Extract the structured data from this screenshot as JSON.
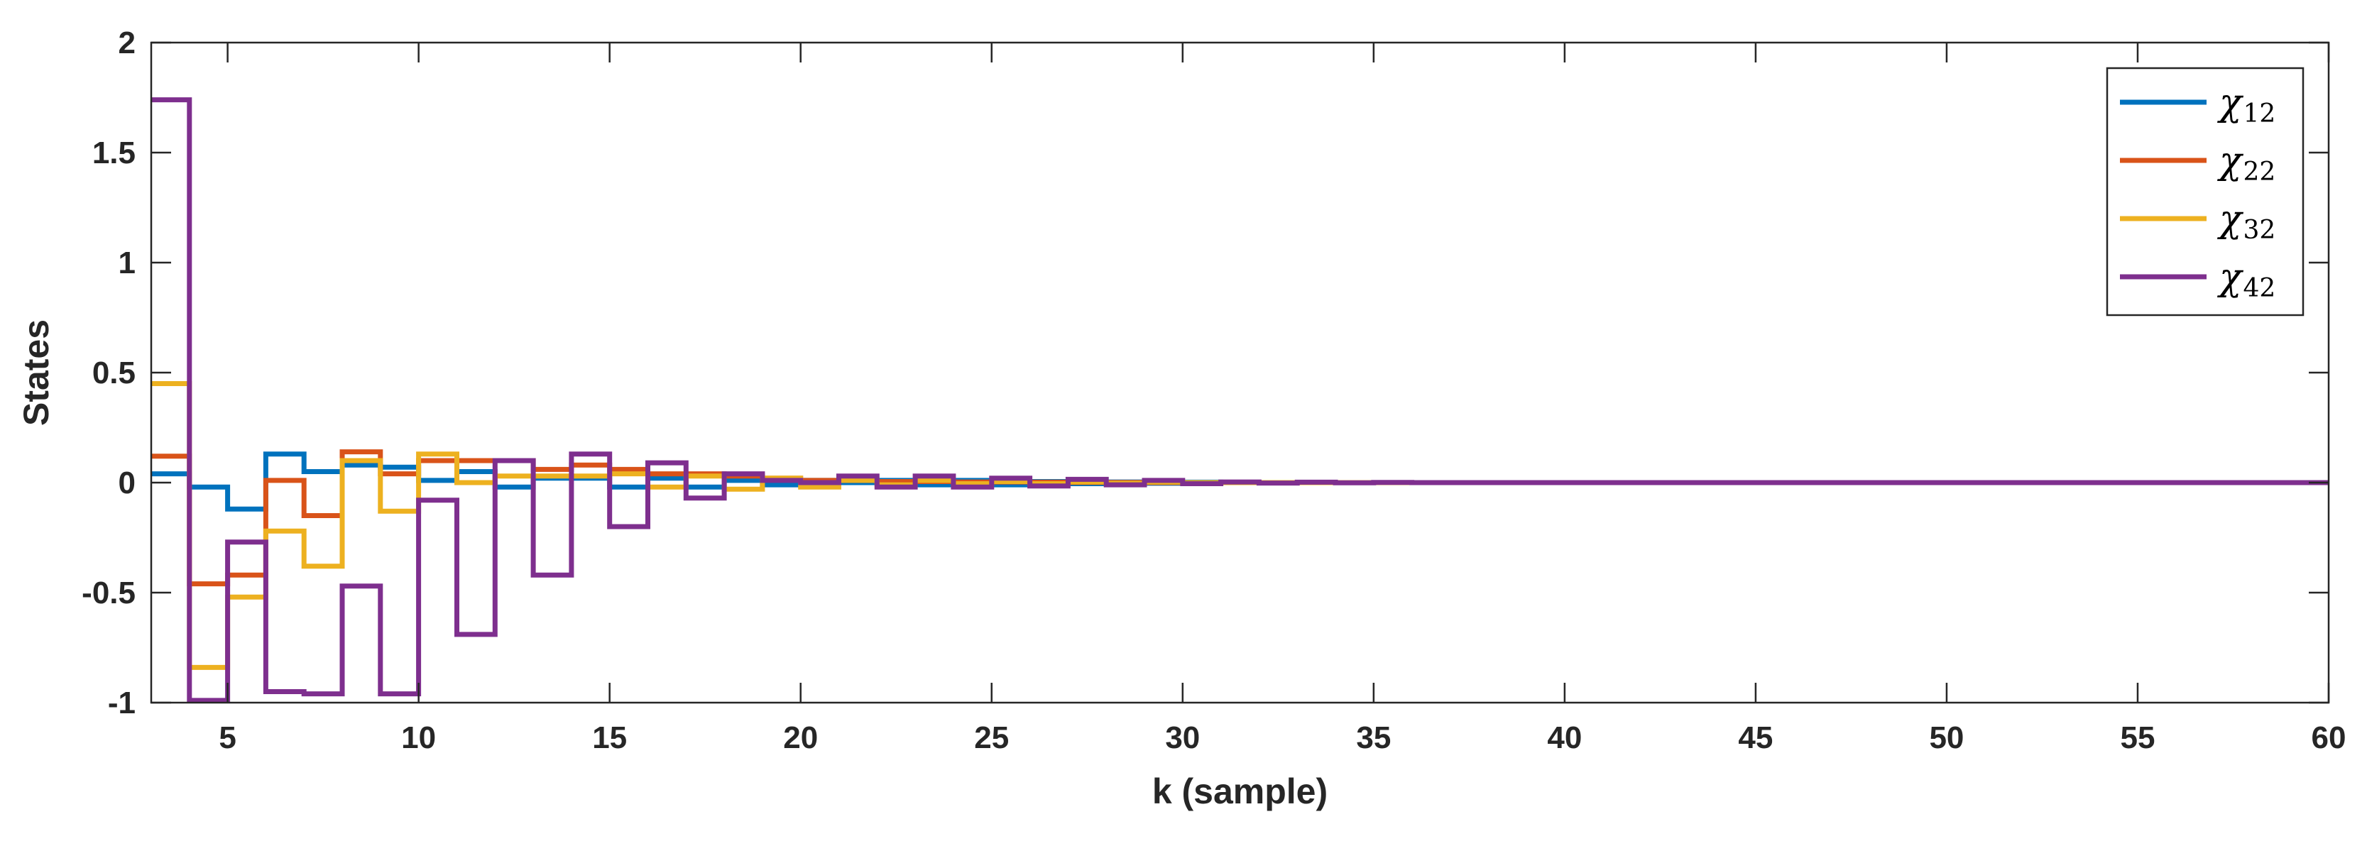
{
  "chart_data": {
    "type": "line",
    "step": true,
    "xlabel": "k (sample)",
    "ylabel": "States",
    "xlim": [
      3,
      60
    ],
    "ylim": [
      -1,
      2
    ],
    "xticks": [
      "5",
      "10",
      "15",
      "20",
      "25",
      "30",
      "35",
      "40",
      "45",
      "50",
      "55",
      "60"
    ],
    "yticks": [
      "-1",
      "-0.5",
      "0",
      "0.5",
      "1",
      "1.5",
      "2"
    ],
    "grid": false,
    "legend_position": "top-right",
    "x": [
      3,
      4,
      5,
      6,
      7,
      8,
      9,
      10,
      11,
      12,
      13,
      14,
      15,
      16,
      17,
      18,
      19,
      20,
      21,
      22,
      23,
      24,
      25,
      26,
      27,
      28,
      29,
      30,
      31,
      32,
      33,
      34,
      35,
      36,
      37,
      38,
      39,
      40,
      41,
      42,
      43,
      44,
      45,
      46,
      47,
      48,
      49,
      50,
      51,
      52,
      53,
      54,
      55,
      56,
      57,
      58,
      59,
      60
    ],
    "series": [
      {
        "name": "χ12",
        "sym": "χ",
        "sub": "12",
        "color": "#0072BD",
        "values": [
          0.04,
          -0.02,
          -0.12,
          0.13,
          0.05,
          0.08,
          0.07,
          0.01,
          0.05,
          -0.02,
          0.02,
          0.02,
          -0.02,
          0.02,
          -0.02,
          0.01,
          -0.01,
          0.01,
          0,
          0.01,
          -0.01,
          0.01,
          -0.01,
          0.005,
          -0.005,
          0.003,
          -0.003,
          0.002,
          0,
          0,
          0,
          0,
          0,
          0,
          0,
          0,
          0,
          0,
          0,
          0,
          0,
          0,
          0,
          0,
          0,
          0,
          0,
          0,
          0,
          0,
          0,
          0,
          0,
          0,
          0,
          0,
          0,
          0
        ]
      },
      {
        "name": "χ22",
        "sym": "χ",
        "sub": "22",
        "color": "#D95319",
        "values": [
          0.12,
          -0.46,
          -0.42,
          0.01,
          -0.15,
          0.14,
          0.04,
          0.1,
          0.1,
          0.1,
          0.06,
          0.08,
          0.06,
          0.04,
          0.04,
          0.03,
          0.02,
          0.01,
          0.01,
          0.005,
          0.005,
          0.003,
          0.003,
          0.002,
          0.001,
          0.001,
          0,
          0,
          0,
          0,
          0,
          0,
          0,
          0,
          0,
          0,
          0,
          0,
          0,
          0,
          0,
          0,
          0,
          0,
          0,
          0,
          0,
          0,
          0,
          0,
          0,
          0,
          0,
          0,
          0,
          0,
          0,
          0
        ]
      },
      {
        "name": "χ32",
        "sym": "χ",
        "sub": "32",
        "color": "#EDB120",
        "values": [
          0.45,
          -0.84,
          -0.52,
          -0.22,
          -0.38,
          0.1,
          -0.13,
          0.13,
          0,
          0.03,
          0.03,
          0.03,
          0.04,
          -0.02,
          0.03,
          -0.03,
          0.02,
          -0.02,
          0.01,
          -0.01,
          0.01,
          -0.005,
          0.005,
          -0.005,
          0.003,
          -0.003,
          0.002,
          0,
          0,
          0,
          0,
          0,
          0,
          0,
          0,
          0,
          0,
          0,
          0,
          0,
          0,
          0,
          0,
          0,
          0,
          0,
          0,
          0,
          0,
          0,
          0,
          0,
          0,
          0,
          0,
          0,
          0,
          0
        ]
      },
      {
        "name": "χ42",
        "sym": "χ",
        "sub": "42",
        "color": "#7E2F8E",
        "values": [
          1.74,
          -0.99,
          -0.27,
          -0.95,
          -0.96,
          -0.47,
          -0.96,
          -0.08,
          -0.69,
          0.1,
          -0.42,
          0.13,
          -0.2,
          0.09,
          -0.07,
          0.04,
          0.01,
          0,
          0.03,
          -0.02,
          0.03,
          -0.02,
          0.02,
          -0.015,
          0.015,
          -0.01,
          0.01,
          -0.005,
          0.003,
          -0.002,
          0.002,
          -0.001,
          0.001,
          0,
          0,
          0,
          0,
          0,
          0,
          0,
          0,
          0,
          0,
          0,
          0,
          0,
          0,
          0,
          0,
          0,
          0,
          0,
          0,
          0,
          0,
          0,
          0,
          0
        ]
      }
    ]
  }
}
